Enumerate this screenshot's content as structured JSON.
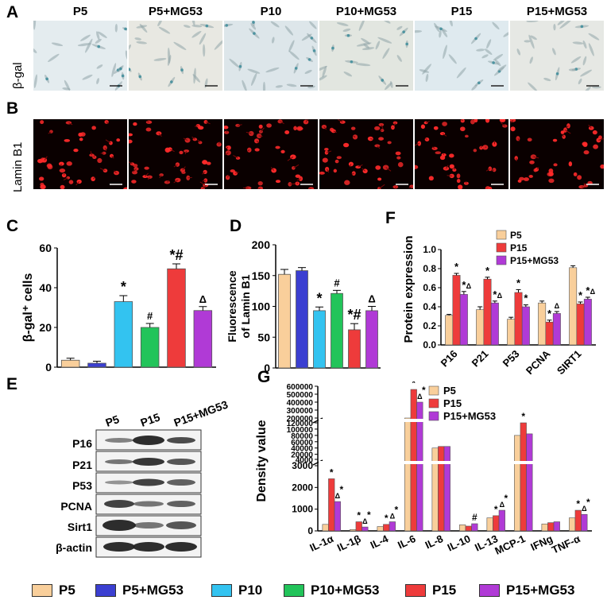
{
  "panels": {
    "A": "A",
    "B": "B",
    "C": "C",
    "D": "D",
    "E": "E",
    "F": "F",
    "G": "G"
  },
  "conditions": [
    "P5",
    "P5+MG53",
    "P10",
    "P10+MG53",
    "P15",
    "P15+MG53"
  ],
  "row_labels": {
    "bgal": "β-gal",
    "lamin": "Lamin B1"
  },
  "colors": {
    "P5": "#f9cf9b",
    "P5+MG53": "#3b3fd1",
    "P10": "#33c3f0",
    "P10+MG53": "#22c45a",
    "P15": "#ee3b3b",
    "P15+MG53": "#b03ad6"
  },
  "legend": [
    "P5",
    "P5+MG53",
    "P10",
    "P10+MG53",
    "P15",
    "P15+MG53"
  ],
  "blot": {
    "lanes": [
      "P5",
      "P15",
      "P15+MG53"
    ],
    "rows": [
      "P16",
      "P21",
      "P53",
      "PCNA",
      "Sirt1",
      "β-actin"
    ]
  },
  "chart_data": [
    {
      "id": "C",
      "type": "bar",
      "ylabel": "β-gal⁺ cells",
      "ylim": [
        0,
        60
      ],
      "yticks": [
        0,
        20,
        40,
        60
      ],
      "categories": [
        "P5",
        "P5+MG53",
        "P10",
        "P10+MG53",
        "P15",
        "P15+MG53"
      ],
      "values": [
        3.5,
        2,
        33,
        20,
        49.5,
        28.5
      ],
      "errors": [
        1,
        1,
        3,
        2,
        2.5,
        2
      ],
      "annotations": [
        "",
        "",
        "*",
        "#",
        "*#",
        "Δ"
      ]
    },
    {
      "id": "D",
      "type": "bar",
      "ylabel": "Fluorescence of Lamin B1",
      "ylim": [
        0,
        200
      ],
      "yticks": [
        0,
        50,
        100,
        150,
        200
      ],
      "categories": [
        "P5",
        "P5+MG53",
        "P10",
        "P10+MG53",
        "P15",
        "P15+MG53"
      ],
      "values": [
        152,
        158,
        93,
        121,
        62,
        93
      ],
      "errors": [
        8,
        5,
        6,
        5,
        10,
        7
      ],
      "annotations": [
        "",
        "",
        "*",
        "#",
        "*#",
        "Δ"
      ]
    },
    {
      "id": "F",
      "type": "bar",
      "ylabel": "Protein expression",
      "ylim": [
        0,
        1.0
      ],
      "yticks": [
        0.0,
        0.2,
        0.4,
        0.6,
        0.8,
        1.0
      ],
      "categories": [
        "P16",
        "P21",
        "P53",
        "PCNA",
        "SIRT1"
      ],
      "series": [
        {
          "name": "P5",
          "values": [
            0.31,
            0.37,
            0.27,
            0.44,
            0.81
          ],
          "errors": [
            0.01,
            0.03,
            0.02,
            0.02,
            0.02
          ]
        },
        {
          "name": "P15",
          "values": [
            0.73,
            0.69,
            0.55,
            0.24,
            0.43
          ],
          "errors": [
            0.02,
            0.02,
            0.03,
            0.02,
            0.02
          ]
        },
        {
          "name": "P15+MG53",
          "values": [
            0.53,
            0.44,
            0.4,
            0.33,
            0.48
          ],
          "errors": [
            0.03,
            0.02,
            0.02,
            0.02,
            0.02
          ]
        }
      ],
      "annotations": [
        [
          "",
          "*",
          "*Δ"
        ],
        [
          "",
          "*",
          "*Δ"
        ],
        [
          "",
          "*",
          "*"
        ],
        [
          "",
          "*",
          "Δ"
        ],
        [
          "",
          "*",
          "*Δ"
        ]
      ]
    },
    {
      "id": "G",
      "type": "bar",
      "ylabel": "Density value",
      "yticks_lower": [
        0,
        1000,
        2000,
        3000
      ],
      "yticks_upper": [
        "4000",
        "20000",
        "40000",
        "60000",
        "80000",
        "100000",
        "120000"
      ],
      "yticks_top": [
        "200000",
        "300000",
        "400000",
        "500000",
        "600000"
      ],
      "categories": [
        "IL-1α",
        "IL-1β",
        "IL-4",
        "IL-6",
        "IL-8",
        "IL-10",
        "IL-13",
        "MCP-1",
        "IFNg",
        "TNF-α"
      ],
      "series": [
        {
          "name": "P5",
          "values": [
            300,
            60,
            200,
            150000,
            40000,
            280,
            600,
            80000,
            320,
            600
          ]
        },
        {
          "name": "P15",
          "values": [
            2400,
            420,
            300,
            560000,
            45000,
            220,
            700,
            120000,
            380,
            950
          ]
        },
        {
          "name": "P15+MG53",
          "values": [
            1350,
            180,
            420,
            400000,
            45000,
            330,
            950,
            85000,
            420,
            760
          ]
        }
      ],
      "annotations": [
        [
          "",
          "*",
          "Δ*"
        ],
        [
          "",
          "*",
          "Δ*"
        ],
        [
          "",
          "*",
          "Δ*"
        ],
        [
          "",
          "*",
          "Δ*"
        ],
        [
          "",
          "",
          ""
        ],
        [
          "",
          "",
          "#"
        ],
        [
          "",
          "*",
          "Δ*"
        ],
        [
          "",
          "*",
          ""
        ],
        [
          "",
          "",
          ""
        ],
        [
          "",
          "*",
          "Δ*"
        ]
      ]
    }
  ]
}
